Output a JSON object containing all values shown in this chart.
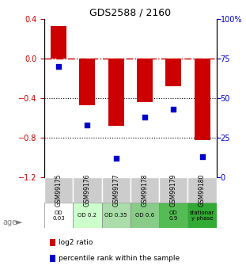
{
  "title": "GDS2588 / 2160",
  "samples": [
    "GSM99175",
    "GSM99176",
    "GSM99177",
    "GSM99178",
    "GSM99179",
    "GSM99180"
  ],
  "log2_ratio": [
    0.33,
    -0.47,
    -0.68,
    -0.44,
    -0.28,
    -0.82
  ],
  "percentile_rank": [
    70,
    33,
    12,
    38,
    43,
    13
  ],
  "bar_color": "#cc0000",
  "dot_color": "#0000cc",
  "ylim_left": [
    -1.2,
    0.4
  ],
  "ylim_right": [
    0,
    100
  ],
  "yticks_left": [
    0.4,
    0.0,
    -0.4,
    -0.8,
    -1.2
  ],
  "yticks_right": [
    100,
    75,
    50,
    25,
    0
  ],
  "hline_y": 0.0,
  "dotted_lines": [
    -0.4,
    -0.8
  ],
  "age_labels": [
    "OD\n0.03",
    "OD 0.2",
    "OD 0.35",
    "OD 0.6",
    "OD\n0.9",
    "stationar\ny phase"
  ],
  "age_bg_colors": [
    "#ffffff",
    "#ccffcc",
    "#99ee99",
    "#88dd88",
    "#55cc55",
    "#33bb33"
  ],
  "legend_log2_color": "#cc0000",
  "legend_pct_color": "#0000cc",
  "legend_log2_label": "log2 ratio",
  "legend_pct_label": "percentile rank within the sample"
}
